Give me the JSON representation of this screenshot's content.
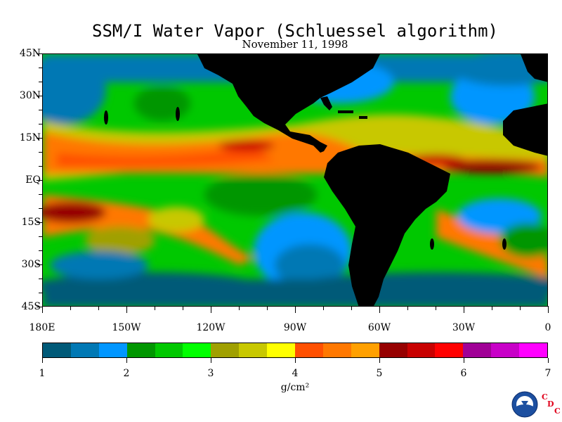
{
  "header": {
    "title": "SSM/I Water Vapor (Schluessel algorithm)",
    "date": "November 11, 1998"
  },
  "map": {
    "lat_labels": [
      "45N",
      "30N",
      "15N",
      "EQ",
      "15S",
      "30S",
      "45S"
    ],
    "lat_values": [
      45,
      30,
      15,
      0,
      -15,
      -30,
      -45
    ],
    "lon_labels": [
      "180E",
      "150W",
      "120W",
      "90W",
      "60W",
      "30W",
      "0"
    ],
    "lon_values": [
      -180,
      -150,
      -120,
      -90,
      -60,
      -30,
      0
    ],
    "extent": {
      "lon": [
        -180,
        0
      ],
      "lat": [
        -45,
        45
      ]
    },
    "land_color": "#000000"
  },
  "colorbar": {
    "colors": [
      "#005a78",
      "#0078b4",
      "#0096ff",
      "#009600",
      "#00c800",
      "#00ff00",
      "#a0a000",
      "#c8c800",
      "#ffff00",
      "#ff5000",
      "#ff7800",
      "#ffa000",
      "#960000",
      "#c80000",
      "#ff0000",
      "#a00096",
      "#c800c8",
      "#ff00ff"
    ],
    "labels": [
      "1",
      "2",
      "3",
      "4",
      "5",
      "6",
      "7"
    ],
    "range": [
      1,
      7
    ],
    "unit": "g/cm²"
  },
  "logo": {
    "icon": "noaa-logo",
    "letters": [
      "C",
      "D",
      "C"
    ]
  }
}
